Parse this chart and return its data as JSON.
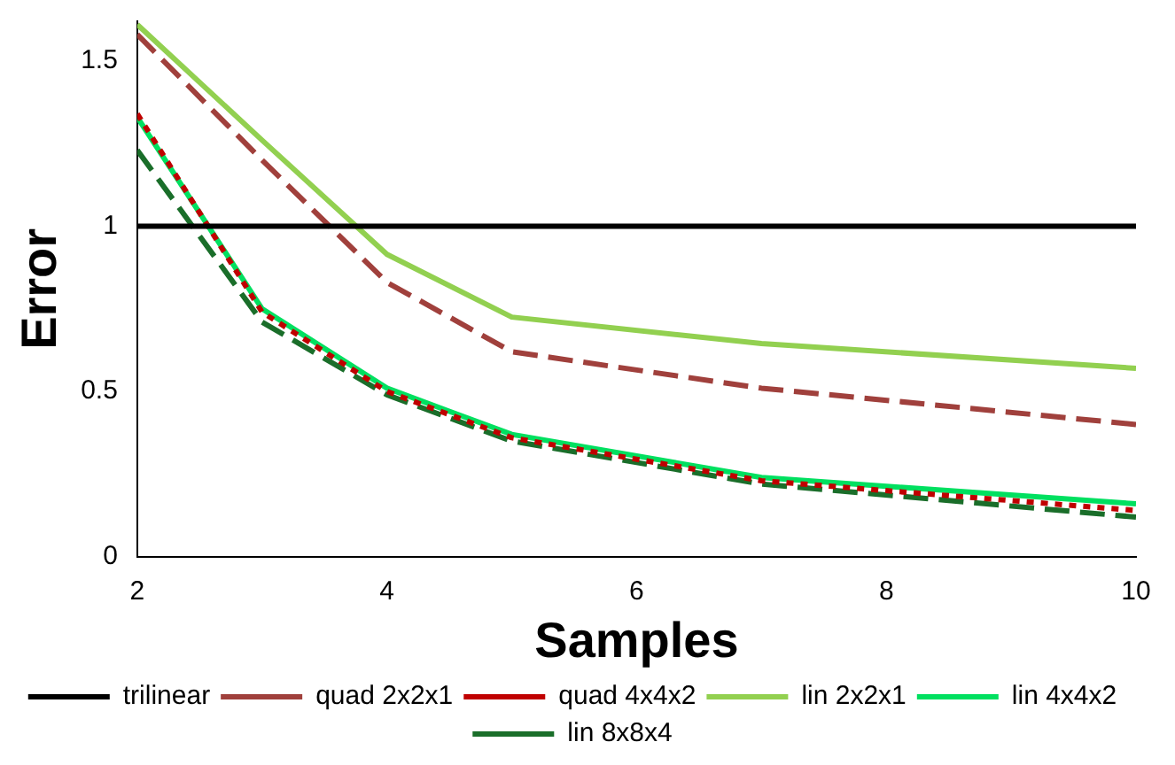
{
  "chart_data": {
    "type": "line",
    "xlabel": "Samples",
    "ylabel": "Error",
    "x": [
      2,
      3,
      4,
      5,
      7,
      10
    ],
    "xlim": [
      2,
      10
    ],
    "xticks": [
      2,
      4,
      6,
      8,
      10
    ],
    "ylim": [
      0,
      1.62
    ],
    "yticks": [
      0,
      0.5,
      1,
      1.5
    ],
    "grid": false,
    "legend": "bottom",
    "marker": "none",
    "series": [
      {
        "name": "trilinear",
        "color": "#000000",
        "line_style": "solid",
        "values": [
          1,
          1,
          1,
          1,
          1,
          1
        ]
      },
      {
        "name": "quad 2x2x1",
        "color": "#a0403c",
        "line_style": "dashed",
        "values": [
          1.58,
          1.2,
          0.83,
          0.62,
          0.51,
          0.4
        ]
      },
      {
        "name": "quad 4x4x2",
        "color": "#c00000",
        "line_style": "dotted",
        "values": [
          1.34,
          0.74,
          0.5,
          0.36,
          0.23,
          0.14
        ]
      },
      {
        "name": "lin 2x2x1",
        "color": "#92d050",
        "line_style": "solid",
        "values": [
          1.61,
          1.26,
          0.915,
          0.725,
          0.645,
          0.57
        ]
      },
      {
        "name": "lin 4x4x2",
        "color": "#00e060",
        "line_style": "solid",
        "values": [
          1.33,
          0.75,
          0.51,
          0.37,
          0.24,
          0.16
        ]
      },
      {
        "name": "lin 8x8x4",
        "color": "#1a6e2a",
        "line_style": "dashed",
        "values": [
          1.23,
          0.71,
          0.49,
          0.35,
          0.22,
          0.12
        ]
      }
    ]
  }
}
